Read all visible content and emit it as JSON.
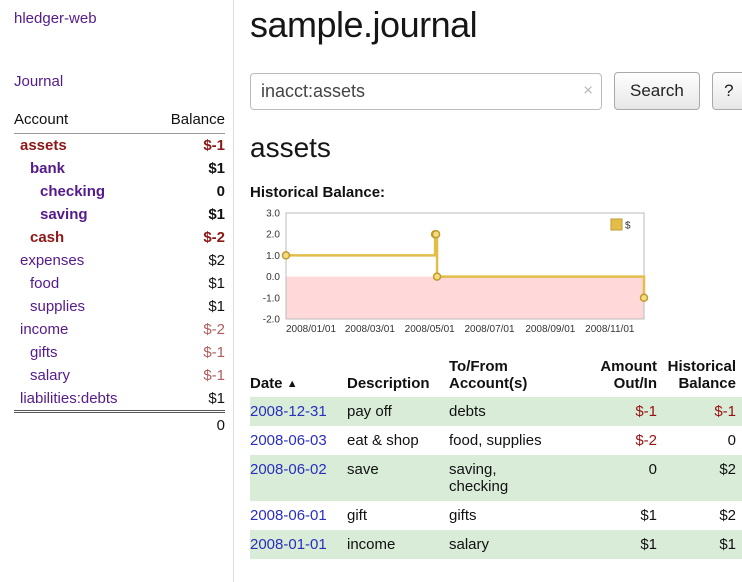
{
  "app": {
    "title": "hledger-web"
  },
  "sidebar": {
    "journal_label": "Journal",
    "accounts": {
      "header": {
        "account": "Account",
        "balance": "Balance"
      },
      "rows": [
        {
          "name": "assets",
          "balance": "$-1"
        },
        {
          "name": "bank",
          "balance": "$1"
        },
        {
          "name": "checking",
          "balance": "0"
        },
        {
          "name": "saving",
          "balance": "$1"
        },
        {
          "name": "cash",
          "balance": "$-2"
        },
        {
          "name": "expenses",
          "balance": "$2"
        },
        {
          "name": "food",
          "balance": "$1"
        },
        {
          "name": "supplies",
          "balance": "$1"
        },
        {
          "name": "income",
          "balance": "$-2"
        },
        {
          "name": "gifts",
          "balance": "$-1"
        },
        {
          "name": "salary",
          "balance": "$-1"
        },
        {
          "name": "liabilities:debts",
          "balance": "$1"
        }
      ],
      "total": "0"
    }
  },
  "main": {
    "title": "sample.journal",
    "search": {
      "value": "inacct:assets",
      "clear": "×",
      "submit_label": "Search",
      "help_label": "?"
    },
    "account_heading": "assets",
    "chart_label": "Historical Balance:"
  },
  "chart_data": {
    "type": "line",
    "title": "Historical Balance of assets",
    "x_range": [
      "2008-01-01",
      "2008-12-31"
    ],
    "ylim": [
      -2.0,
      3.0
    ],
    "y_ticks": [
      "3.0",
      "2.0",
      "1.0",
      "0.0",
      "-1.0",
      "-2.0"
    ],
    "x_ticks": [
      "2008/01/01",
      "2008/03/01",
      "2008/05/01",
      "2008/07/01",
      "2008/09/01",
      "2008/11/01"
    ],
    "legend": {
      "label": "$",
      "position": "top-right"
    },
    "series": [
      {
        "name": "$",
        "step": true,
        "points": [
          {
            "date": "2008-01-01",
            "value": 1
          },
          {
            "date": "2008-06-01",
            "value": 2
          },
          {
            "date": "2008-06-02",
            "value": 2
          },
          {
            "date": "2008-06-03",
            "value": 0
          },
          {
            "date": "2008-12-31",
            "value": -1
          }
        ]
      }
    ],
    "colors": {
      "line": "#e2bd4a",
      "marker_fill": "#f4dc82",
      "marker_stroke": "#c19a2e",
      "negative_region": "#ffd9d9",
      "plot_border": "#bbbbbb"
    }
  },
  "register": {
    "headers": {
      "date": "Date",
      "sort_indicator": "▲",
      "description": "Description",
      "accounts_line1": "To/From",
      "accounts_line2": "Account(s)",
      "amount_line1": "Amount",
      "amount_line2": "Out/In",
      "balance_line1": "Historical",
      "balance_line2": "Balance"
    },
    "rows": [
      {
        "date": "2008-12-31",
        "description": "pay off",
        "accounts": "debts",
        "amount": "$-1",
        "balance": "$-1"
      },
      {
        "date": "2008-06-03",
        "description": "eat & shop",
        "accounts": "food, supplies",
        "amount": "$-2",
        "balance": "0"
      },
      {
        "date": "2008-06-02",
        "description": "save",
        "accounts": "saving,\nchecking",
        "amount": "0",
        "balance": "$2"
      },
      {
        "date": "2008-06-01",
        "description": "gift",
        "accounts": "gifts",
        "amount": "$1",
        "balance": "$2"
      },
      {
        "date": "2008-01-01",
        "description": "income",
        "accounts": "salary",
        "amount": "$1",
        "balance": "$1"
      }
    ]
  }
}
